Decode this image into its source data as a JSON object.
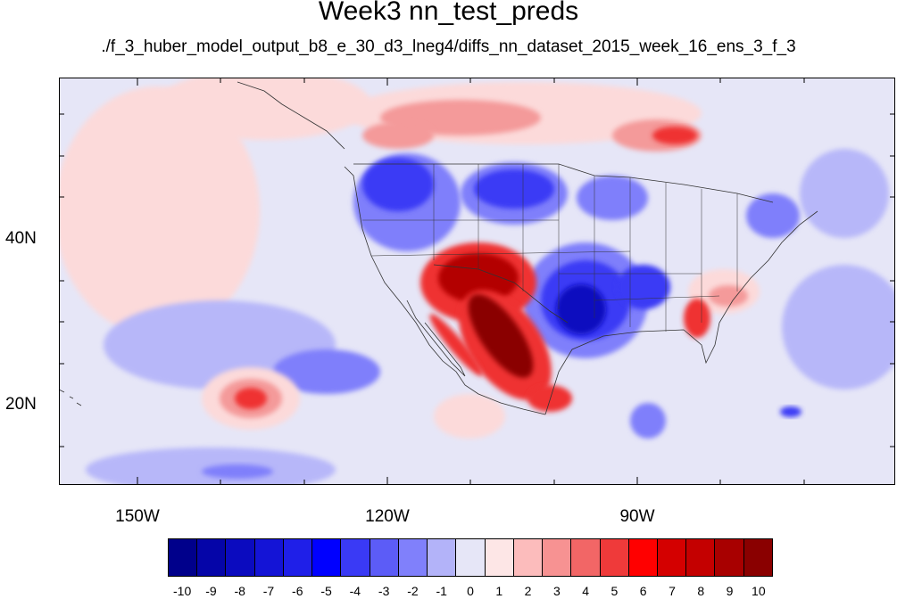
{
  "title": "Week3 nn_test_preds",
  "subtitle": "./f_3_huber_model_output_b8_e_30_d3_lneg4/diffs_nn_dataset_2015_week_16_ens_3_f_3",
  "map": {
    "lat_labels": [
      "40N",
      "20N"
    ],
    "lon_labels": [
      "150W",
      "120W",
      "90W"
    ],
    "field_colors": {
      "neutral": "#e6e6f7",
      "neg_light": "#b7b7f9",
      "neg_mid": "#7f7ffb",
      "neg_strong": "#3a3af5",
      "neg_dark": "#0b0bbf",
      "pos_light": "#fcdada",
      "pos_mid": "#f49a9a",
      "pos_strong": "#ef3030",
      "pos_dark": "#b30000",
      "pos_darkest": "#8a0000"
    }
  },
  "colorbar": {
    "labels": [
      "-10",
      "-9",
      "-8",
      "-7",
      "-6",
      "-5",
      "-4",
      "-3",
      "-2",
      "-1",
      "0",
      "1",
      "2",
      "3",
      "4",
      "5",
      "6",
      "7",
      "8",
      "9",
      "10"
    ],
    "colors": [
      "#00008b",
      "#0505a8",
      "#0b0bbf",
      "#1414d6",
      "#1f1fe8",
      "#0000ff",
      "#3a3af5",
      "#5c5cf7",
      "#8080fb",
      "#b3b3f9",
      "#e6e6f7",
      "#fde6e6",
      "#fcbcbc",
      "#f79292",
      "#f26666",
      "#ef3a3a",
      "#ff0000",
      "#d40000",
      "#c40000",
      "#a80000",
      "#8a0000"
    ]
  }
}
